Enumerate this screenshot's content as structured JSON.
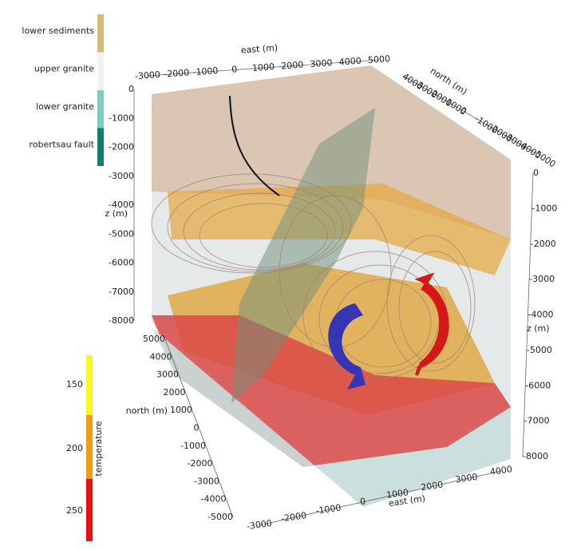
{
  "legend": {
    "items": [
      {
        "label": "lower sediments",
        "color": "#d6b878"
      },
      {
        "label": "upper granite",
        "color": "#f2f2f2"
      },
      {
        "label": "lower granite",
        "color": "#7ecdc0"
      },
      {
        "label": "robertsau fault",
        "color": "#0e8070"
      }
    ]
  },
  "colorbar": {
    "title": "temperature",
    "ticks": [
      150,
      200,
      250
    ]
  },
  "axes": {
    "top_east": {
      "label": "east (m)",
      "ticks": [
        -3000,
        -2000,
        -1000,
        0,
        1000,
        2000,
        3000,
        4000,
        5000
      ]
    },
    "top_north": {
      "label": "north (m)",
      "ticks": [
        4000,
        3000,
        2000,
        1000,
        0,
        -1000,
        -2000,
        -3000,
        -4000,
        -5000
      ]
    },
    "left_z": {
      "label": "z (m)",
      "ticks": [
        0,
        -1000,
        -2000,
        -3000,
        -4000,
        -5000,
        -6000,
        -7000,
        -8000
      ]
    },
    "right_z": {
      "label": "z (m)",
      "ticks": [
        0,
        -1000,
        -2000,
        -3000,
        -4000,
        -5000,
        -6000,
        -7000,
        -8000
      ]
    },
    "left_north": {
      "label": "north (m)",
      "ticks": [
        5000,
        4000,
        3000,
        2000,
        1000,
        0,
        -1000,
        -2000,
        -3000,
        -4000,
        -5000
      ]
    },
    "bottom_east": {
      "label": "east (m)",
      "ticks": [
        -3000,
        -2000,
        -1000,
        0,
        1000,
        2000,
        3000,
        4000
      ]
    }
  }
}
